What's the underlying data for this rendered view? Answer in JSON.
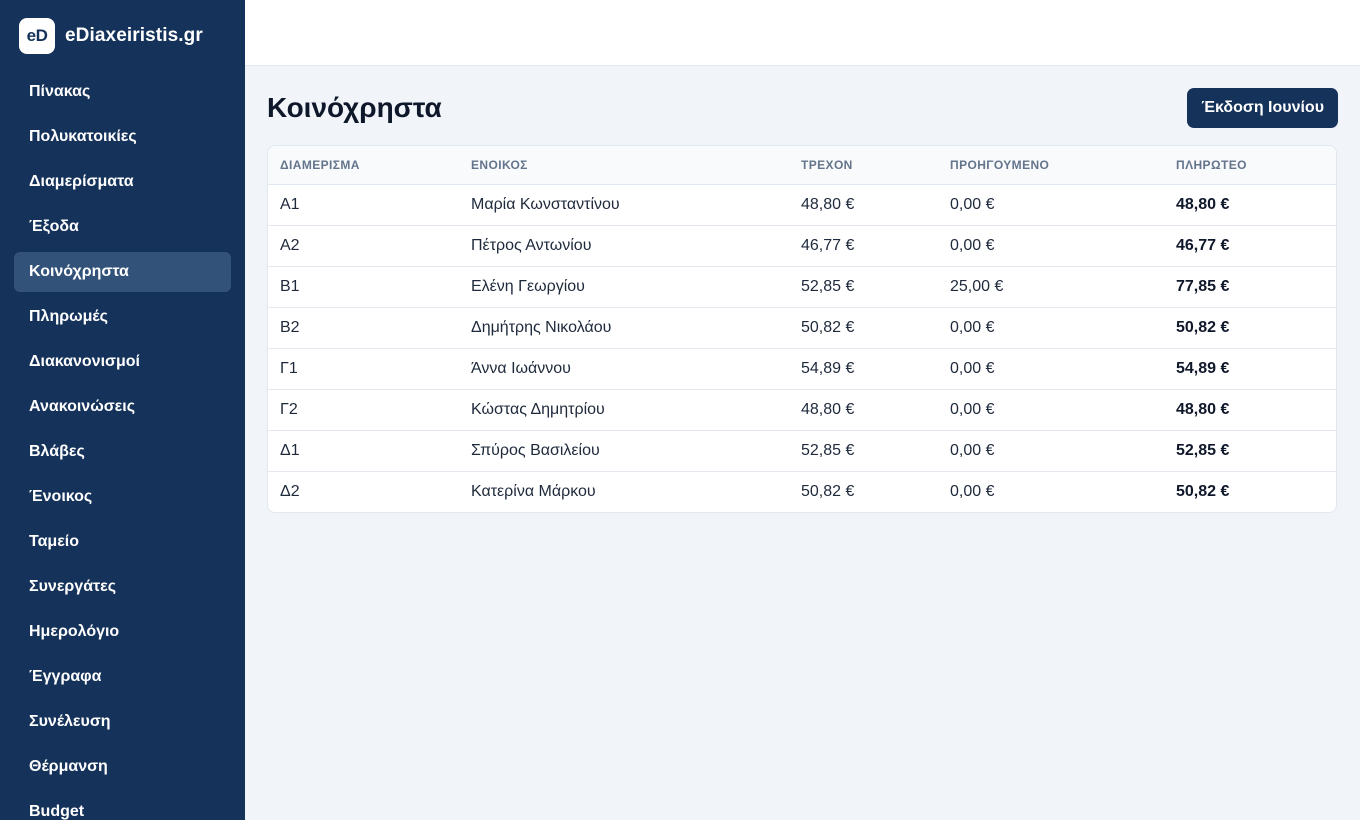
{
  "brand": {
    "logo": "eD",
    "name": "eDiaxeiristis.gr"
  },
  "sidebar": {
    "items": [
      {
        "label": "Πίνακας",
        "active": false
      },
      {
        "label": "Πολυκατοικίες",
        "active": false
      },
      {
        "label": "Διαμερίσματα",
        "active": false
      },
      {
        "label": "Έξοδα",
        "active": false
      },
      {
        "label": "Κοινόχρηστα",
        "active": true
      },
      {
        "label": "Πληρωμές",
        "active": false
      },
      {
        "label": "Διακανονισμοί",
        "active": false
      },
      {
        "label": "Ανακοινώσεις",
        "active": false
      },
      {
        "label": "Βλάβες",
        "active": false
      },
      {
        "label": "Ένοικος",
        "active": false
      },
      {
        "label": "Ταμείο",
        "active": false
      },
      {
        "label": "Συνεργάτες",
        "active": false
      },
      {
        "label": "Ημερολόγιο",
        "active": false
      },
      {
        "label": "Έγγραφα",
        "active": false
      },
      {
        "label": "Συνέλευση",
        "active": false
      },
      {
        "label": "Θέρμανση",
        "active": false
      },
      {
        "label": "Budget",
        "active": false
      }
    ]
  },
  "main": {
    "title": "Κοινόχρηστα",
    "issue_button": "Έκδοση Ιουνίου",
    "table": {
      "columns": [
        "ΔΙΑΜΕΡΙΣΜΑ",
        "ΕΝΟΙΚΟΣ",
        "ΤΡΕΧΟΝ",
        "ΠΡΟΗΓΟΥΜΕΝΟ",
        "ΠΛΗΡΩΤΕΟ"
      ],
      "rows": [
        [
          "Α1",
          "Μαρία Κωνσταντίνου",
          "48,80 €",
          "0,00 €",
          "48,80 €"
        ],
        [
          "Α2",
          "Πέτρος Αντωνίου",
          "46,77 €",
          "0,00 €",
          "46,77 €"
        ],
        [
          "Β1",
          "Ελένη Γεωργίου",
          "52,85 €",
          "25,00 €",
          "77,85 €"
        ],
        [
          "Β2",
          "Δημήτρης Νικολάου",
          "50,82 €",
          "0,00 €",
          "50,82 €"
        ],
        [
          "Γ1",
          "Άννα Ιωάννου",
          "54,89 €",
          "0,00 €",
          "54,89 €"
        ],
        [
          "Γ2",
          "Κώστας Δημητρίου",
          "48,80 €",
          "0,00 €",
          "48,80 €"
        ],
        [
          "Δ1",
          "Σπύρος Βασιλείου",
          "52,85 €",
          "0,00 €",
          "52,85 €"
        ],
        [
          "Δ2",
          "Κατερίνα Μάρκου",
          "50,82 €",
          "0,00 €",
          "50,82 €"
        ]
      ]
    }
  },
  "colors": {
    "sidebar_bg": "#15325a",
    "active_item_bg": "#33527a",
    "page_bg": "#f1f5f9"
  }
}
